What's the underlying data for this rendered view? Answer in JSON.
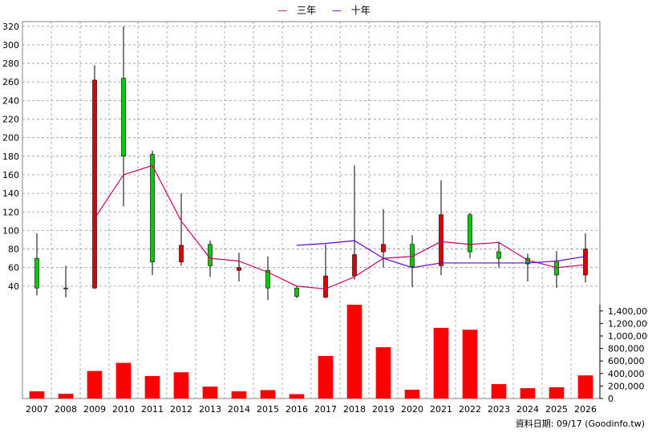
{
  "legend": [
    {
      "label": "三年",
      "color": "#cc0066"
    },
    {
      "label": "十年",
      "color": "#6600cc"
    }
  ],
  "source_note": "資料日期: 09/17  (Goodinfo.tw)",
  "chart_data": {
    "type": "candlestick+line+bar",
    "price_axis": {
      "ylim": [
        20,
        325
      ],
      "ticks": [
        40,
        60,
        80,
        100,
        120,
        140,
        160,
        180,
        200,
        220,
        240,
        260,
        280,
        300,
        320
      ],
      "position": "left"
    },
    "volume_axis": {
      "ylim": [
        0,
        1500000
      ],
      "ticks": [
        0,
        200000,
        400000,
        600000,
        800000,
        1000000,
        1200000,
        1400000
      ],
      "tick_labels": [
        "0",
        "200,000",
        "400,000",
        "600,000",
        "800,000",
        "1,000,000",
        "1,200,000",
        "1,400,000"
      ],
      "position": "right"
    },
    "categories": [
      "2007",
      "2008",
      "2009",
      "2010",
      "2011",
      "2012",
      "2013",
      "2014",
      "2015",
      "2016",
      "2017",
      "2018",
      "2019",
      "2020",
      "2021",
      "2022",
      "2023",
      "2024",
      "2025",
      "2026"
    ],
    "candles": [
      {
        "open": 38,
        "close": 70,
        "high": 97,
        "low": 30
      },
      {
        "open": 38,
        "close": 38,
        "high": 62,
        "low": 28
      },
      {
        "open": 262,
        "close": 38,
        "high": 278,
        "low": 37
      },
      {
        "open": 180,
        "close": 264,
        "high": 320,
        "low": 126
      },
      {
        "open": 66,
        "close": 182,
        "high": 186,
        "low": 52
      },
      {
        "open": 84,
        "close": 66,
        "high": 140,
        "low": 62
      },
      {
        "open": 62,
        "close": 85,
        "high": 89,
        "low": 50
      },
      {
        "open": 60,
        "close": 57,
        "high": 76,
        "low": 45
      },
      {
        "open": 38,
        "close": 57,
        "high": 72,
        "low": 25
      },
      {
        "open": 29,
        "close": 38,
        "high": 40,
        "low": 27
      },
      {
        "open": 51,
        "close": 28,
        "high": 85,
        "low": 27
      },
      {
        "open": 74,
        "close": 51,
        "high": 170,
        "low": 47
      },
      {
        "open": 85,
        "close": 77,
        "high": 123,
        "low": 60
      },
      {
        "open": 61,
        "close": 85,
        "high": 95,
        "low": 39
      },
      {
        "open": 117,
        "close": 62,
        "high": 154,
        "low": 52
      },
      {
        "open": 77,
        "close": 117,
        "high": 119,
        "low": 70
      },
      {
        "open": 70,
        "close": 77,
        "high": 88,
        "low": 60
      },
      {
        "open": 64,
        "close": 70,
        "high": 75,
        "low": 45
      },
      {
        "open": 52,
        "close": 67,
        "high": 78,
        "low": 38
      },
      {
        "open": 80,
        "close": 52,
        "high": 97,
        "low": 44
      }
    ],
    "series": [
      {
        "name": "三年",
        "values": [
          null,
          null,
          113,
          160,
          170,
          110,
          70,
          67,
          55,
          40,
          37,
          50,
          70,
          72,
          88,
          85,
          87,
          68,
          60,
          63
        ]
      },
      {
        "name": "十年",
        "values": [
          null,
          null,
          null,
          null,
          null,
          null,
          null,
          null,
          null,
          84,
          86,
          89,
          70,
          60,
          65,
          65,
          65,
          65,
          67,
          72
        ]
      }
    ],
    "volume": [
      115000,
      75000,
      440000,
      570000,
      360000,
      420000,
      190000,
      115000,
      135000,
      70000,
      680000,
      1500000,
      820000,
      140000,
      1130000,
      1100000,
      230000,
      165000,
      180000,
      370000
    ],
    "grid": true
  }
}
